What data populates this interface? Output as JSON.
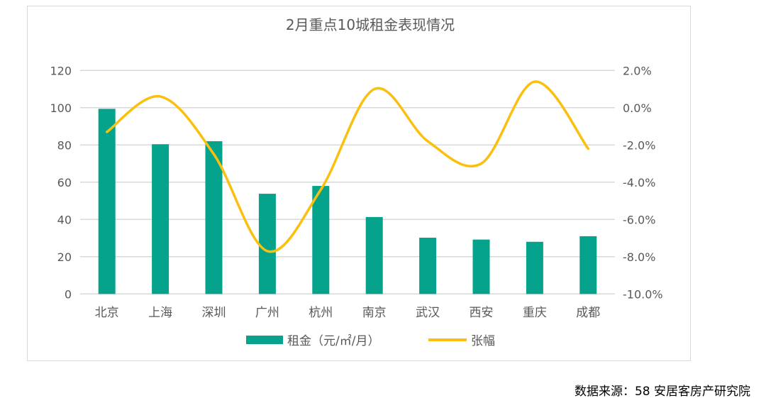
{
  "chart_data": {
    "type": "bar",
    "title": "2月重点10城租金表现情况",
    "categories": [
      "北京",
      "上海",
      "深圳",
      "广州",
      "杭州",
      "南京",
      "武汉",
      "西安",
      "重庆",
      "成都"
    ],
    "series": [
      {
        "name": "租金（元/㎡/月）",
        "type": "bar",
        "axis": "left",
        "color": "#05a38b",
        "values": [
          99.4,
          80.4,
          82.0,
          53.8,
          58.0,
          41.3,
          30.2,
          29.2,
          28.0,
          31.0
        ]
      },
      {
        "name": "张幅",
        "type": "line",
        "axis": "right",
        "color": "#fbbf0e",
        "values": [
          -1.3,
          0.6,
          -2.5,
          -7.7,
          -4.4,
          1.0,
          -1.8,
          -3.0,
          1.4,
          -2.2
        ]
      }
    ],
    "left_axis": {
      "ylim": [
        0,
        120
      ],
      "ticks": [
        "0",
        "20",
        "40",
        "60",
        "80",
        "100",
        "120"
      ]
    },
    "right_axis": {
      "ylim": [
        -10,
        2
      ],
      "ticks": [
        "-10.0%",
        "-8.0%",
        "-6.0%",
        "-4.0%",
        "-2.0%",
        "0.0%",
        "2.0%"
      ]
    },
    "grid": true,
    "legend": "bottom"
  },
  "source": "数据来源：58 安居客房产研究院"
}
